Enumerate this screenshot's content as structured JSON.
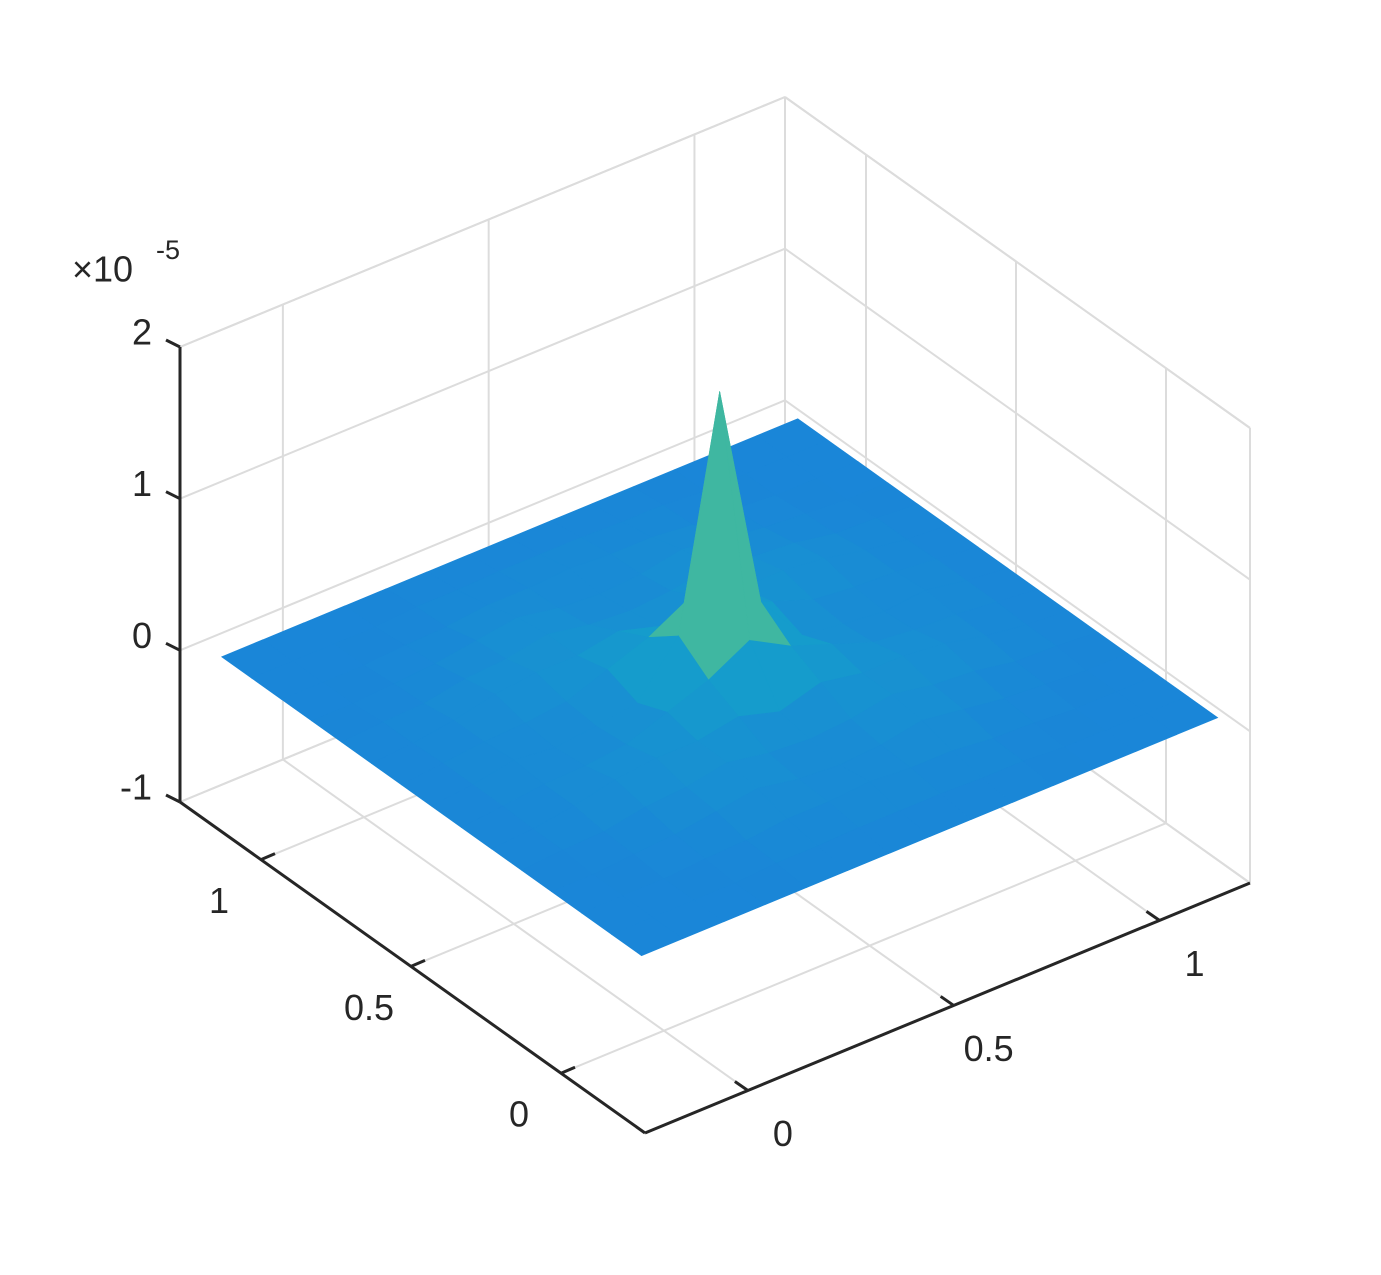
{
  "chart_data": {
    "type": "surface",
    "x": [
      -0.2,
      -0.1,
      0,
      0.1,
      0.2,
      0.3,
      0.4,
      0.5,
      0.6,
      0.7,
      0.8,
      0.9,
      1,
      1.1,
      1.2
    ],
    "y": [
      -0.2,
      -0.1,
      0,
      0.1,
      0.2,
      0.3,
      0.4,
      0.5,
      0.6,
      0.7,
      0.8,
      0.9,
      1,
      1.1,
      1.2
    ],
    "z": [
      [
        0,
        0,
        0,
        0,
        0,
        0,
        0,
        0,
        0,
        0,
        0,
        0,
        0,
        0,
        0
      ],
      [
        0,
        0,
        0,
        0,
        0.02,
        0.02,
        0.03,
        0.03,
        0.03,
        0.02,
        0.02,
        0,
        0,
        0,
        0
      ],
      [
        0,
        0,
        0,
        0.02,
        0.03,
        0.06,
        0.06,
        0.08,
        0.06,
        0.06,
        0.03,
        0.02,
        0,
        0,
        0
      ],
      [
        0,
        0,
        0.02,
        0.04,
        0.08,
        0.12,
        0.07,
        0.05,
        0.07,
        0.12,
        0.08,
        0.04,
        0.02,
        0,
        0
      ],
      [
        0,
        0.02,
        0.03,
        0.08,
        0.1,
        0.15,
        0.1,
        0.08,
        0.1,
        0.15,
        0.1,
        0.08,
        0.03,
        0.02,
        0
      ],
      [
        0,
        0.02,
        0.06,
        0.12,
        0.15,
        0.15,
        0.2,
        0.12,
        0.2,
        0.15,
        0.15,
        0.12,
        0.06,
        0.02,
        0
      ],
      [
        0,
        0.03,
        0.06,
        0.07,
        0.1,
        0.2,
        0.3,
        0.45,
        0.3,
        0.2,
        0.1,
        0.07,
        0.06,
        0.03,
        0
      ],
      [
        0,
        0.03,
        0.08,
        0.05,
        0.08,
        0.12,
        0.45,
        1.95,
        0.45,
        0.12,
        0.08,
        0.05,
        0.08,
        0.03,
        0
      ],
      [
        0,
        0.03,
        0.06,
        0.07,
        0.1,
        0.2,
        0.3,
        0.45,
        0.3,
        0.2,
        0.1,
        0.07,
        0.06,
        0.03,
        0
      ],
      [
        0,
        0.02,
        0.06,
        0.12,
        0.15,
        0.15,
        0.2,
        0.12,
        0.2,
        0.15,
        0.15,
        0.12,
        0.06,
        0.02,
        0
      ],
      [
        0,
        0.02,
        0.03,
        0.08,
        0.1,
        0.15,
        0.1,
        0.08,
        0.1,
        0.15,
        0.1,
        0.08,
        0.03,
        0.02,
        0
      ],
      [
        0,
        0,
        0.02,
        0.04,
        0.08,
        0.12,
        0.07,
        0.05,
        0.07,
        0.12,
        0.08,
        0.04,
        0.02,
        0,
        0
      ],
      [
        0,
        0,
        0,
        0.02,
        0.03,
        0.06,
        0.06,
        0.08,
        0.06,
        0.06,
        0.03,
        0.02,
        0,
        0,
        0
      ],
      [
        0,
        0,
        0,
        0,
        0.02,
        0.02,
        0.03,
        0.03,
        0.03,
        0.02,
        0.02,
        0,
        0,
        0,
        0
      ],
      [
        0,
        0,
        0,
        0,
        0,
        0,
        0,
        0,
        0,
        0,
        0,
        0,
        0,
        0,
        0
      ]
    ],
    "xlim": [
      -0.25,
      1.22
    ],
    "ylim": [
      -0.28,
      1.27
    ],
    "zlim": [
      -1,
      2
    ],
    "xticks": [
      0,
      0.5,
      1
    ],
    "yticks": [
      0,
      0.5,
      1
    ],
    "zticks": [
      -1,
      0,
      1,
      2
    ],
    "z_multiplier": {
      "base": "×10",
      "exponent": "-5"
    },
    "grid": true
  }
}
